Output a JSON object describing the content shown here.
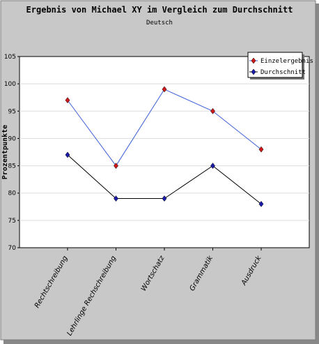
{
  "chart_data": {
    "type": "line",
    "title": "Ergebnis von Michael XY im Vergleich zum Durchschnitt",
    "subtitle": "Deutsch",
    "xlabel": "",
    "ylabel": "Prozentpunkte",
    "categories": [
      "Rechtschreibung",
      "Lehrlinge Rechschreibung",
      "Wortschatz",
      "Grammatik",
      "Ausdruck"
    ],
    "series": [
      {
        "name": "Einzelergebnis",
        "values": [
          97,
          85,
          99,
          95,
          88
        ],
        "line_color": "#3a5fd6",
        "marker_color": "#d01818"
      },
      {
        "name": "Durchschnitt",
        "values": [
          87,
          79,
          79,
          85,
          78
        ],
        "line_color": "#000000",
        "marker_color": "#1a1aa8"
      }
    ],
    "ylim": [
      70,
      105
    ],
    "yticks": [
      70,
      75,
      80,
      85,
      90,
      95,
      100,
      105
    ],
    "grid": true,
    "legend_position": "top-right",
    "colors": {
      "outer_background": "#c8c8c8",
      "plot_background": "#ffffff",
      "grid": "#dddddd"
    }
  }
}
